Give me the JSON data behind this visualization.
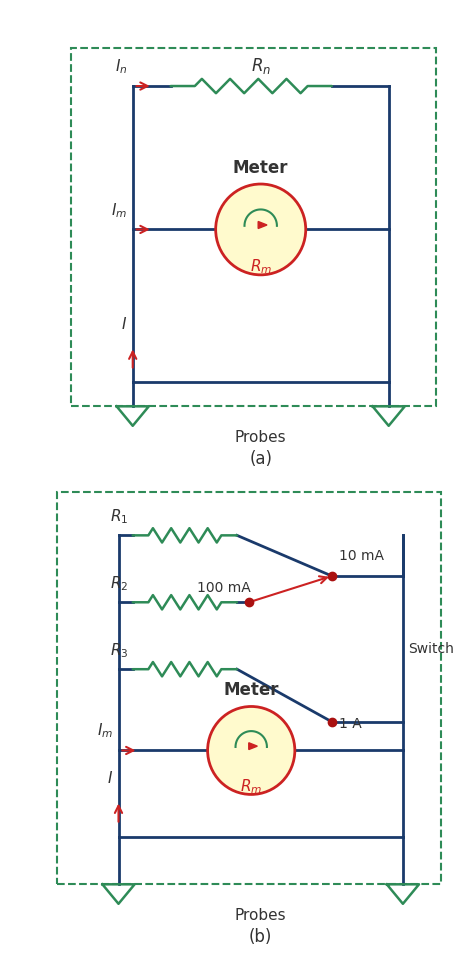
{
  "fig_width": 4.74,
  "fig_height": 9.56,
  "dpi": 100,
  "bg_color": "#ffffff",
  "wire_color": "#1a3a6b",
  "resistor_color": "#2e8b57",
  "dashed_box_color": "#2e8b57",
  "meter_fill": "#fffacd",
  "meter_border": "#cc2222",
  "arrow_color": "#cc2222",
  "probe_color": "#2e8b57",
  "label_color": "#333333",
  "node_color": "#aa1111",
  "panel_a_label": "(a)",
  "panel_b_label": "(b)",
  "probes_label": "Probes",
  "meter_label": "Meter"
}
